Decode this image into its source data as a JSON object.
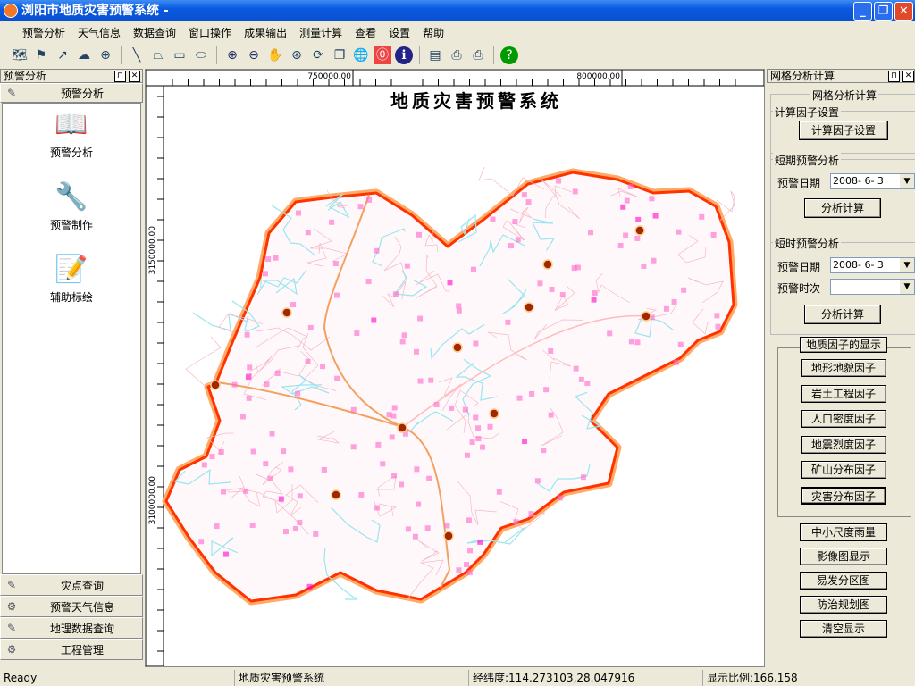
{
  "window": {
    "title": "浏阳市地质灾害预警系统 -"
  },
  "menu": [
    "预警分析",
    "天气信息",
    "数据查询",
    "窗口操作",
    "成果输出",
    "测量计算",
    "查看",
    "设置",
    "帮助"
  ],
  "toolbar_icons": [
    "map-edit-icon",
    "flag-icon",
    "arrow-icon",
    "cloud-icon",
    "target-icon",
    "line-icon",
    "polygon-icon",
    "rectangle-icon",
    "ellipse-icon",
    "zoom-in-icon",
    "zoom-out-icon",
    "pan-hand-icon",
    "zoom-scale-icon",
    "refresh-icon",
    "copy-icon",
    "globe-icon",
    "stop-icon",
    "info-icon",
    "image-icon",
    "print-icon",
    "print-preview-icon",
    "help-icon"
  ],
  "left_panel": {
    "title": "预警分析",
    "section": "预警分析",
    "items": [
      "预警分析",
      "预警制作",
      "辅助标绘"
    ],
    "bottom_sections": [
      "灾点查询",
      "预警天气信息",
      "地理数据查询",
      "工程管理"
    ]
  },
  "map": {
    "title": "地质灾害预警系统",
    "top_ticks": [
      "750000.00",
      "800000.00"
    ],
    "left_ticks": [
      "3150000.00",
      "3100000.00"
    ],
    "colors": {
      "boundary": "#ff3300",
      "buffer": "#ffaa66",
      "rivers": "#99e6f0",
      "roads": "#f4a060",
      "hazard": "#ff66cc"
    }
  },
  "right_panel": {
    "title": "网格分析计算",
    "group": "网格分析计算",
    "factor": {
      "legend": "计算因子设置",
      "button": "计算因子设置"
    },
    "short_term": {
      "legend": "短期预警分析",
      "date_label": "预警日期",
      "date": "2008- 6- 3",
      "button": "分析计算"
    },
    "short_time": {
      "legend": "短时预警分析",
      "date_label": "预警日期",
      "date": "2008- 6- 3",
      "time_label": "预警时次",
      "time": "",
      "button": "分析计算"
    },
    "geo_factors": {
      "legend": "地质因子的显示",
      "buttons": [
        "地形地貌因子",
        "岩土工程因子",
        "人口密度因子",
        "地震烈度因子",
        "矿山分布因子",
        "灾害分布因子"
      ]
    },
    "extra_buttons": [
      "中小尺度雨量",
      "影像图显示",
      "易发分区图",
      "防治规划图",
      "清空显示"
    ]
  },
  "status": {
    "ready": "Ready",
    "system": "地质灾害预警系统",
    "coords": "经纬度:114.273103,28.047916",
    "scale": "显示比例:166.158"
  }
}
